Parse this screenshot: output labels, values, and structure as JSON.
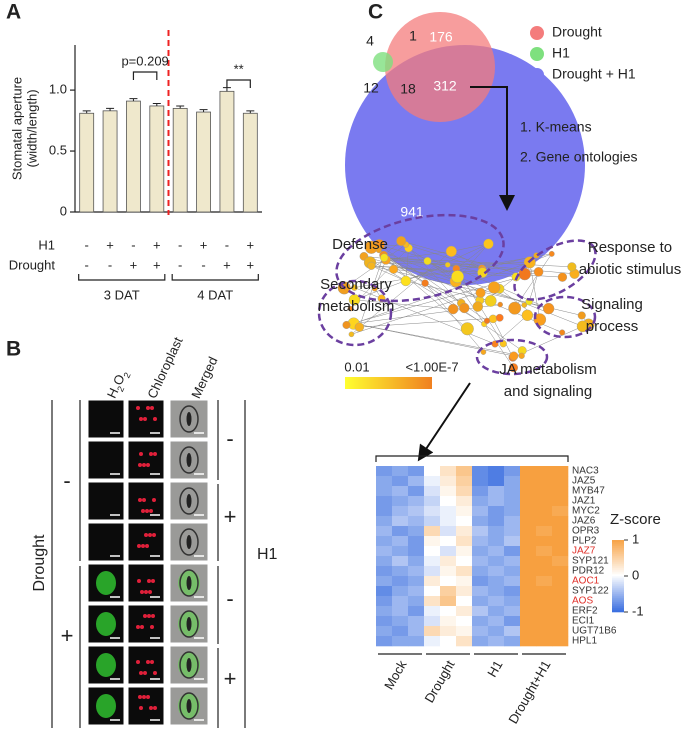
{
  "panel_labels": [
    "A",
    "B",
    "C"
  ],
  "chart_data": {
    "type": "bar",
    "ylabel": [
      "Stomatal aperture",
      "(width/length)"
    ],
    "categories": [
      null,
      null,
      null,
      null,
      null,
      null,
      null,
      null
    ],
    "values": [
      0.81,
      0.83,
      0.91,
      0.87,
      0.85,
      0.82,
      0.99,
      0.81
    ],
    "errors": [
      0.02,
      0.02,
      0.02,
      0.02,
      0.02,
      0.02,
      0.03,
      0.02
    ],
    "color": "#efe8cc",
    "ylim": [
      0,
      1.37
    ],
    "yticks": [
      0,
      0.5,
      {
        "value": 1,
        "label": "1.0"
      }
    ],
    "row_labels": [
      "H1",
      "Drought"
    ],
    "h1": [
      "-",
      "+",
      "-",
      "+",
      "-",
      "+",
      "-",
      "+"
    ],
    "drought": [
      "-",
      "-",
      "+",
      "+",
      "-",
      "-",
      "+",
      "+"
    ],
    "groups": [
      "3 DAT",
      "4 DAT"
    ],
    "annotations": [
      "p=0.209",
      "**"
    ]
  },
  "panel_b": {
    "h2o2": [
      "H",
      "2",
      "O",
      "2"
    ],
    "columns": [
      "Chloroplast",
      "Merged"
    ],
    "row_factor": "Drought",
    "row_signs": [
      "-",
      "+"
    ],
    "col_factor": "H1",
    "h1_signs": [
      "-",
      "+",
      "-",
      "+"
    ]
  },
  "venn": {
    "legend": [
      "Drought",
      "H1",
      "Drought + H1"
    ],
    "colors": [
      "#f47c7c",
      "#7ee07e",
      "#7a7af0"
    ],
    "counts": [
      176,
      1,
      4,
      12,
      18,
      312,
      941
    ]
  },
  "steps": [
    "1. K-means",
    "2. Gene ontologies"
  ],
  "network": {
    "labels": [
      [
        "Defense"
      ],
      [
        "Response to",
        "abiotic stimulus"
      ],
      [
        "Secondary",
        "metabolism"
      ],
      [
        "Signaling",
        "process"
      ],
      [
        "JA metabolism",
        "and signaling"
      ]
    ],
    "colorbar": [
      "0.01",
      "<1.00E-7"
    ]
  },
  "heatmap": {
    "groups": [
      "Mock",
      "Drought",
      "H1",
      "Drought+H1"
    ],
    "genes": [
      {
        "label": "NAC3",
        "color": "#333"
      },
      {
        "label": "JAZ5",
        "color": "#333"
      },
      {
        "label": "MYB47",
        "color": "#333"
      },
      {
        "label": "JAZ1",
        "color": "#333"
      },
      {
        "label": "MYC2",
        "color": "#333"
      },
      {
        "label": "JAZ6",
        "color": "#333"
      },
      {
        "label": "OPR3",
        "color": "#333"
      },
      {
        "label": "PLP2",
        "color": "#333"
      },
      {
        "label": "JAZ7",
        "color": "#e0302a"
      },
      {
        "label": "SYP121",
        "color": "#333"
      },
      {
        "label": "PDR12",
        "color": "#333"
      },
      {
        "label": "AOC1",
        "color": "#e0302a"
      },
      {
        "label": "SYP122",
        "color": "#333"
      },
      {
        "label": "AOS",
        "color": "#e0302a"
      },
      {
        "label": "ERF2",
        "color": "#333"
      },
      {
        "label": "ECI1",
        "color": "#333"
      },
      {
        "label": "UGT71B6",
        "color": "#333"
      },
      {
        "label": "HPL1",
        "color": "#333"
      }
    ],
    "values": [
      [
        -0.7,
        -0.6,
        -0.7,
        0,
        0.3,
        0.6,
        -0.8,
        -0.9,
        -0.7,
        1,
        1,
        1
      ],
      [
        -0.6,
        -0.7,
        -0.5,
        -0.1,
        0.2,
        0.5,
        -0.8,
        -0.9,
        -0.6,
        1,
        1,
        1
      ],
      [
        -0.6,
        -0.5,
        -0.7,
        -0.2,
        0.1,
        0.4,
        -0.7,
        -0.5,
        -0.6,
        1,
        1,
        1
      ],
      [
        -0.7,
        -0.6,
        -0.5,
        -0.3,
        0,
        0.2,
        -0.6,
        -0.5,
        -0.6,
        1,
        1,
        1
      ],
      [
        -0.7,
        -0.5,
        -0.4,
        -0.2,
        -0.1,
        0.1,
        -0.5,
        -0.7,
        -0.6,
        1,
        1,
        0.9
      ],
      [
        -0.6,
        -0.4,
        -0.5,
        -0.3,
        -0.1,
        0,
        -0.6,
        -0.7,
        -0.5,
        1,
        1,
        1
      ],
      [
        -0.5,
        -0.7,
        -0.6,
        0.4,
        -0.2,
        0.2,
        -0.4,
        -0.6,
        -0.5,
        1,
        0.9,
        1
      ],
      [
        -0.6,
        -0.5,
        -0.7,
        0.1,
        0,
        0.3,
        -0.5,
        -0.6,
        -0.4,
        1,
        1,
        1
      ],
      [
        -0.5,
        -0.6,
        -0.7,
        0,
        -0.2,
        0.1,
        -0.6,
        -0.5,
        -0.7,
        1,
        0.9,
        1
      ],
      [
        -0.6,
        -0.4,
        -0.6,
        -0.1,
        0.2,
        0,
        -0.5,
        -0.6,
        -0.5,
        1,
        1,
        0.9
      ],
      [
        -0.7,
        -0.6,
        -0.5,
        -0.2,
        0.1,
        0.3,
        -0.6,
        -0.5,
        -0.6,
        1,
        1,
        1
      ],
      [
        -0.6,
        -0.7,
        -0.6,
        0.2,
        0,
        0.1,
        -0.7,
        -0.6,
        -0.5,
        1,
        0.9,
        1
      ],
      [
        -0.8,
        -0.6,
        -0.5,
        0,
        0.5,
        0.2,
        -0.5,
        -0.6,
        -0.7,
        1,
        1,
        1
      ],
      [
        -0.7,
        -0.5,
        -0.6,
        0.3,
        0.6,
        0,
        -0.6,
        -0.5,
        -0.6,
        1,
        1,
        1
      ],
      [
        -0.6,
        -0.5,
        -0.7,
        -0.1,
        0,
        0.2,
        -0.4,
        -0.6,
        -0.5,
        1,
        1,
        1
      ],
      [
        -0.7,
        -0.6,
        -0.5,
        -0.2,
        0.1,
        0,
        -0.6,
        -0.5,
        -0.7,
        1,
        1,
        1
      ],
      [
        -0.6,
        -0.7,
        -0.5,
        0.4,
        0.2,
        0.1,
        -0.5,
        -0.6,
        -0.4,
        1,
        1,
        1
      ],
      [
        -0.7,
        -0.6,
        -0.6,
        -0.1,
        0,
        0.3,
        -0.6,
        -0.5,
        -0.6,
        1,
        1,
        1
      ]
    ],
    "legend_title": "Z-score",
    "zlim": [
      -1,
      1
    ],
    "zticks": [
      1,
      0,
      -1
    ],
    "colors": [
      "#3b6fe0",
      "#ffffff",
      "#f7a040"
    ]
  }
}
